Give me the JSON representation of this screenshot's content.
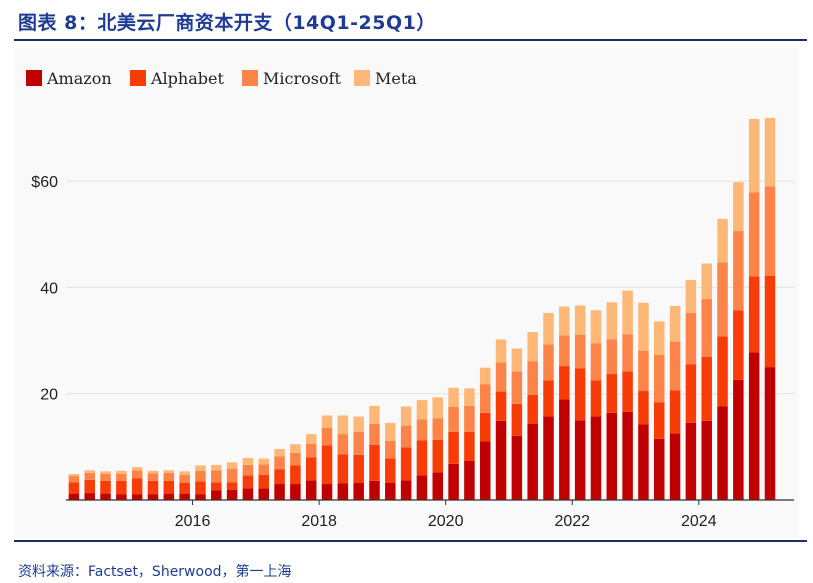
{
  "figure": {
    "title": "图表 8：北美云厂商资本开支（14Q1-25Q1）",
    "source": "资料来源：Factset，Sherwood，第一上海"
  },
  "colors": {
    "Amazon": "#c00000",
    "Alphabet": "#f83c08",
    "Microsoft": "#fc8448",
    "Meta": "#fdb878",
    "grid": "#e3e3e3",
    "plot_bg": "#f9f9f9"
  },
  "chart_data": {
    "type": "bar",
    "stacked": true,
    "title": "",
    "xlabel": "",
    "ylabel": "",
    "ylim": [
      0,
      73
    ],
    "y_ticks": [
      {
        "value": 20,
        "label": "20"
      },
      {
        "value": 40,
        "label": "40"
      },
      {
        "value": 60,
        "label": "$60"
      }
    ],
    "x_tick_labels": [
      {
        "label": "2016",
        "at": "16Q1"
      },
      {
        "label": "2018",
        "at": "18Q1"
      },
      {
        "label": "2020",
        "at": "20Q1"
      },
      {
        "label": "2022",
        "at": "22Q1"
      },
      {
        "label": "2024",
        "at": "24Q1"
      }
    ],
    "legend_position": "top-left",
    "grid": "horizontal",
    "categories": [
      "14Q1",
      "14Q2",
      "14Q3",
      "14Q4",
      "15Q1",
      "15Q2",
      "15Q3",
      "15Q4",
      "16Q1",
      "16Q2",
      "16Q3",
      "16Q4",
      "17Q1",
      "17Q2",
      "17Q3",
      "17Q4",
      "18Q1",
      "18Q2",
      "18Q3",
      "18Q4",
      "19Q1",
      "19Q2",
      "19Q3",
      "19Q4",
      "20Q1",
      "20Q2",
      "20Q3",
      "20Q4",
      "21Q1",
      "21Q2",
      "21Q3",
      "21Q4",
      "22Q1",
      "22Q2",
      "22Q3",
      "22Q4",
      "23Q1",
      "23Q2",
      "23Q3",
      "23Q4",
      "24Q1",
      "24Q2",
      "24Q3",
      "24Q4",
      "25Q1"
    ],
    "series": [
      {
        "name": "Amazon",
        "values": [
          1.2,
          1.3,
          1.2,
          1.1,
          1.1,
          1.1,
          1.2,
          1.2,
          1.1,
          1.8,
          1.9,
          2.2,
          2.2,
          3.0,
          3.0,
          3.7,
          3.0,
          3.1,
          3.2,
          3.6,
          3.2,
          3.7,
          4.6,
          5.2,
          6.8,
          7.4,
          11.0,
          14.9,
          12.1,
          14.3,
          15.7,
          18.9,
          15.0,
          15.7,
          16.4,
          16.6,
          14.2,
          11.5,
          12.5,
          14.5,
          14.9,
          17.6,
          22.6,
          27.8,
          25.0
        ]
      },
      {
        "name": "Alphabet",
        "values": [
          2.1,
          2.5,
          2.4,
          2.5,
          3.0,
          2.5,
          2.4,
          2.0,
          2.4,
          1.5,
          1.4,
          2.4,
          2.5,
          2.8,
          3.5,
          4.3,
          7.3,
          5.5,
          5.3,
          6.8,
          4.6,
          6.2,
          6.6,
          6.1,
          6.0,
          5.4,
          5.4,
          5.5,
          6.0,
          5.5,
          6.8,
          6.3,
          9.8,
          6.8,
          7.3,
          7.6,
          6.3,
          6.9,
          8.1,
          11.0,
          12.0,
          13.2,
          13.1,
          14.3,
          17.2
        ]
      },
      {
        "name": "Microsoft",
        "values": [
          1.2,
          1.3,
          1.3,
          1.3,
          1.5,
          1.4,
          1.5,
          1.5,
          2.0,
          2.3,
          2.6,
          2.0,
          2.0,
          2.4,
          2.4,
          2.6,
          3.3,
          3.8,
          4.3,
          3.9,
          3.3,
          4.1,
          4.0,
          4.1,
          4.7,
          4.9,
          5.4,
          5.5,
          6.1,
          6.3,
          6.8,
          5.8,
          6.3,
          7.0,
          6.5,
          7.0,
          7.6,
          8.9,
          9.2,
          9.7,
          10.9,
          13.9,
          14.9,
          15.8,
          16.8
        ]
      },
      {
        "name": "Meta",
        "values": [
          0.4,
          0.5,
          0.5,
          0.6,
          0.6,
          0.5,
          0.5,
          0.7,
          1.0,
          1.0,
          1.2,
          1.3,
          1.1,
          1.4,
          1.6,
          1.8,
          2.3,
          3.5,
          2.9,
          3.4,
          3.4,
          3.6,
          3.6,
          3.9,
          3.6,
          3.3,
          3.1,
          4.3,
          4.3,
          5.5,
          5.9,
          5.4,
          5.5,
          6.2,
          7.0,
          8.2,
          9.0,
          6.3,
          6.7,
          6.2,
          6.7,
          8.2,
          9.2,
          13.8,
          12.9
        ]
      }
    ]
  }
}
